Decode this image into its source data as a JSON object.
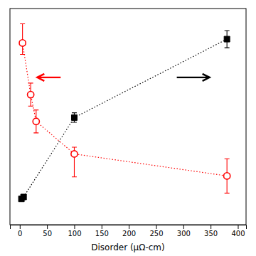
{
  "chart_data": {
    "type": "scatter",
    "x_label": "Disorder (μΩ-cm)",
    "xlim": [
      -18,
      415
    ],
    "ylim": [
      -80,
      1050
    ],
    "xticks": [
      0,
      50,
      100,
      150,
      200,
      250,
      300,
      350,
      400
    ],
    "tick_labels": "x",
    "series": [
      {
        "color": "black",
        "marker": "square",
        "line_style": "dotted",
        "x": [
          3,
          7,
          100,
          380
        ],
        "values": [
          55,
          65,
          480,
          890
        ],
        "error": [
          8,
          8,
          25,
          45
        ]
      },
      {
        "color": "red",
        "marker": "open-circle",
        "line_style": "dotted",
        "x": [
          5,
          20,
          30,
          100,
          380
        ],
        "values": [
          870,
          600,
          460,
          290,
          175
        ],
        "error_minus": [
          60,
          60,
          60,
          120,
          90
        ],
        "error_plus": [
          100,
          60,
          60,
          35,
          90
        ]
      }
    ],
    "annotations": [
      {
        "type": "arrow",
        "x_from": 75,
        "x_to": 32,
        "y": 690,
        "color": "red"
      },
      {
        "type": "arrow",
        "x_from": 288,
        "x_to": 348,
        "y": 690,
        "color": "black"
      }
    ]
  }
}
